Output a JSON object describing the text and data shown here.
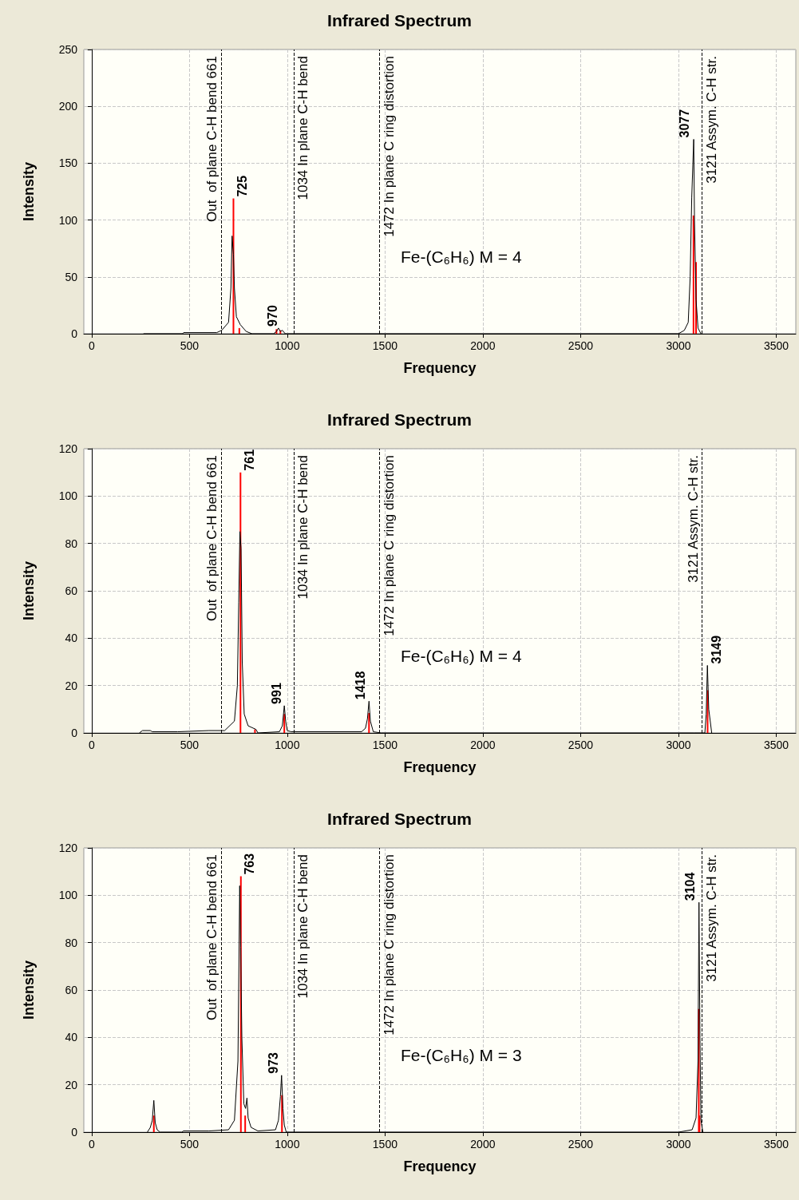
{
  "chart_data": [
    {
      "type": "line",
      "title": "Infrared Spectrum",
      "xlabel": "Frequency",
      "ylabel": "Intensity",
      "xlim": [
        -40,
        3600
      ],
      "xticks": [
        0,
        500,
        1000,
        1500,
        2000,
        2500,
        3000,
        3500
      ],
      "ylim": [
        0,
        250
      ],
      "yticks": [
        0,
        50,
        100,
        150,
        200,
        250
      ],
      "grid": true,
      "marker": "none",
      "series": [
        {
          "color": "#000000",
          "x": [
            265,
            465,
            470,
            640,
            665,
            700,
            712,
            718,
            725,
            730,
            740,
            760,
            790,
            820,
            930,
            945,
            955,
            965,
            975,
            990,
            3000,
            3030,
            3050,
            3060,
            3068,
            3078,
            3082,
            3090,
            3100,
            3115
          ],
          "values": [
            0,
            0,
            1,
            1,
            3,
            10,
            40,
            86,
            70,
            40,
            15,
            8,
            2,
            0,
            0,
            2,
            5,
            2,
            3,
            0,
            0,
            3,
            10,
            50,
            120,
            171,
            100,
            30,
            5,
            0
          ]
        },
        {
          "type": "bar",
          "color": "#ff0000",
          "x": [
            725,
            755,
            945,
            965,
            3077,
            3090
          ],
          "values": [
            119,
            5,
            4,
            3,
            104,
            63
          ]
        }
      ],
      "ref_lines": [
        {
          "axis": "x",
          "value": 661,
          "label": "Out  of plane C-H bend 661",
          "line_style": "dashed",
          "color": "#000000"
        },
        {
          "axis": "x",
          "value": 1034,
          "label": "1034 In plane C-H bend",
          "line_style": "dashed",
          "color": "#000000"
        },
        {
          "axis": "x",
          "value": 1472,
          "label": "1472 In plane C ring distortion",
          "line_style": "dashed",
          "color": "#000000"
        },
        {
          "axis": "x",
          "value": 3121,
          "label": "3121 Assym. C-H str.",
          "line_style": "dashed",
          "color": "#000000"
        }
      ],
      "annotations": [
        {
          "text": "725",
          "x": 725,
          "y": 119
        },
        {
          "text": "970",
          "x": 970,
          "y": 5
        },
        {
          "text": "3077",
          "x": 3077,
          "y": 171
        },
        "Fe-(C₆H₆) M = 4"
      ]
    },
    {
      "type": "line",
      "title": "Infrared Spectrum",
      "xlabel": "Frequency",
      "ylabel": "Intensity",
      "xlim": [
        -40,
        3600
      ],
      "xticks": [
        0,
        500,
        1000,
        1500,
        2000,
        2500,
        3000,
        3500
      ],
      "ylim": [
        0,
        120
      ],
      "yticks": [
        0,
        20,
        40,
        60,
        80,
        100,
        120
      ],
      "grid": true,
      "marker": "none",
      "series": [
        {
          "color": "#000000",
          "x": [
            244,
            260,
            300,
            310,
            440,
            600,
            680,
            730,
            745,
            752,
            758,
            764,
            770,
            780,
            800,
            840,
            850,
            960,
            975,
            985,
            992,
            1000,
            1020,
            1380,
            1400,
            1410,
            1418,
            1425,
            1440,
            1480,
            3080,
            3135,
            3142,
            3148,
            3155,
            3170
          ],
          "values": [
            0,
            1,
            1,
            0.5,
            0.5,
            1,
            1,
            5,
            20,
            55,
            85,
            78,
            30,
            8,
            3,
            1.5,
            0,
            0.5,
            3,
            11.5,
            5,
            1,
            0.5,
            0.5,
            2,
            6,
            13.4,
            5,
            0.5,
            0,
            0,
            0,
            8,
            28.5,
            10,
            0
          ]
        },
        {
          "type": "bar",
          "color": "#ff0000",
          "x": [
            761,
            835,
            985,
            1418,
            3149
          ],
          "values": [
            110,
            1.5,
            8,
            8.4,
            18
          ]
        }
      ],
      "ref_lines": [
        {
          "axis": "x",
          "value": 661,
          "label": "Out  of plane C-H bend 661",
          "line_style": "dashed",
          "color": "#000000"
        },
        {
          "axis": "x",
          "value": 1034,
          "label": "1034 In plane C-H bend",
          "line_style": "dashed",
          "color": "#000000"
        },
        {
          "axis": "x",
          "value": 1472,
          "label": "1472 In plane C ring distortion",
          "line_style": "dashed",
          "color": "#000000"
        },
        {
          "axis": "x",
          "value": 3121,
          "label": "3121 Assym. C-H str.",
          "line_style": "dashed",
          "color": "#000000"
        }
      ],
      "annotations": [
        {
          "text": "761",
          "x": 761,
          "y": 110
        },
        {
          "text": "991",
          "x": 991,
          "y": 11.5
        },
        {
          "text": "1418",
          "x": 1418,
          "y": 13.4
        },
        {
          "text": "3149",
          "x": 3149,
          "y": 28.5
        },
        "Fe-(C₆H₆) M = 4"
      ]
    },
    {
      "type": "line",
      "title": "Infrared Spectrum",
      "xlabel": "Frequency",
      "ylabel": "Intensity",
      "xlim": [
        -40,
        3600
      ],
      "xticks": [
        0,
        500,
        1000,
        1500,
        2000,
        2500,
        3000,
        3500
      ],
      "ylim": [
        0,
        120
      ],
      "yticks": [
        0,
        20,
        40,
        60,
        80,
        100,
        120
      ],
      "grid": true,
      "marker": "none",
      "series": [
        {
          "color": "#000000",
          "x": [
            285,
            300,
            310,
            318,
            325,
            335,
            350,
            460,
            470,
            600,
            700,
            730,
            748,
            757,
            762,
            768,
            778,
            787,
            794,
            800,
            815,
            850,
            940,
            955,
            965,
            971,
            978,
            985,
            995,
            3000,
            3070,
            3090,
            3100,
            3105,
            3110,
            3115,
            3125
          ],
          "values": [
            0,
            2,
            5,
            13.4,
            4,
            1,
            0,
            0,
            0.5,
            0.5,
            1,
            5,
            30,
            104,
            78,
            40,
            12,
            10,
            14.4,
            6,
            2,
            0.5,
            1,
            5,
            15,
            24,
            10,
            3,
            0,
            0,
            1,
            6,
            30,
            97,
            40,
            5,
            0
          ]
        },
        {
          "type": "bar",
          "color": "#ff0000",
          "x": [
            318,
            763,
            785,
            973,
            3104,
            3108
          ],
          "values": [
            7,
            108,
            7,
            15.6,
            52,
            7
          ]
        }
      ],
      "ref_lines": [
        {
          "axis": "x",
          "value": 661,
          "label": "Out  of plane C-H bend 661",
          "line_style": "dashed",
          "color": "#000000"
        },
        {
          "axis": "x",
          "value": 1034,
          "label": "1034 In plane C-H bend",
          "line_style": "dashed",
          "color": "#000000"
        },
        {
          "axis": "x",
          "value": 1472,
          "label": "1472 In plane C ring distortion",
          "line_style": "dashed",
          "color": "#000000"
        },
        {
          "axis": "x",
          "value": 3121,
          "label": "3121 Assym. C-H str.",
          "line_style": "dashed",
          "color": "#000000"
        }
      ],
      "annotations": [
        {
          "text": "763",
          "x": 763,
          "y": 108
        },
        {
          "text": "973",
          "x": 973,
          "y": 24
        },
        {
          "text": "3104",
          "x": 3104,
          "y": 97
        },
        "Fe-(C₆H₆) M = 3"
      ]
    }
  ]
}
